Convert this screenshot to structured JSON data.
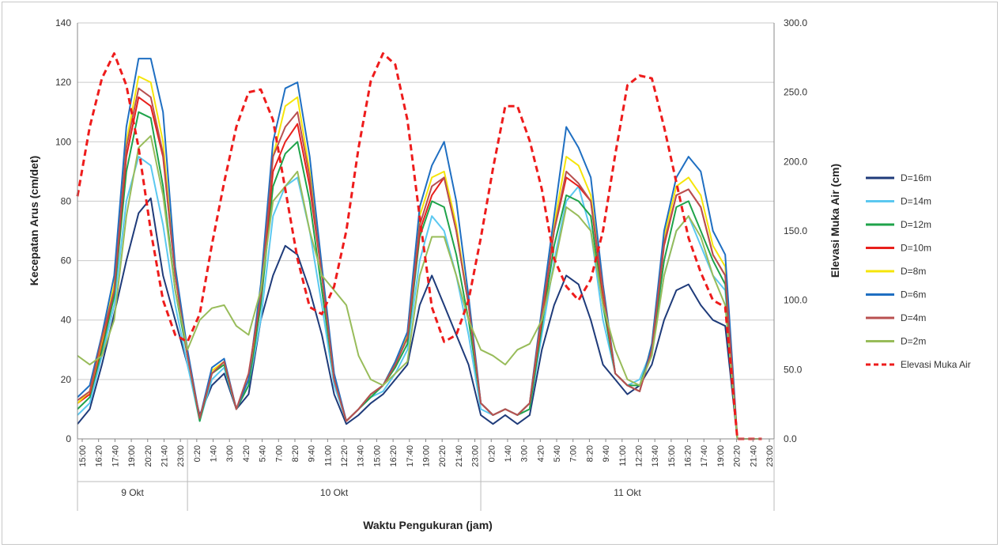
{
  "chart_data": {
    "type": "line",
    "xlabel": "Waktu Pengukuran (jam)",
    "ylabel_left": "Kecepatan Arus (cm/det)",
    "ylabel_right": "Elevasi Muka Air (cm)",
    "ylim_left": [
      0,
      140
    ],
    "ylim_right": [
      0,
      300
    ],
    "yticks_left": [
      "0",
      "20",
      "40",
      "60",
      "80",
      "100",
      "120",
      "140"
    ],
    "yticks_right": [
      "0.0",
      "50.0",
      "100.0",
      "150.0",
      "200.0",
      "250.0",
      "300.0"
    ],
    "grid": true,
    "legend_position": "right",
    "x_tick_labels": [
      "15:00",
      "16:20",
      "17:40",
      "19:00",
      "20:20",
      "21:40",
      "23:00",
      "0:20",
      "1:40",
      "3:00",
      "4:20",
      "5:40",
      "7:00",
      "8:20",
      "9:40",
      "11:00",
      "12:20",
      "13:40",
      "15:00",
      "16:20",
      "17:40",
      "19:00",
      "20:20",
      "21:40",
      "23:00",
      "0:20",
      "1:40",
      "3:00",
      "4:20",
      "5:40",
      "7:00",
      "8:20",
      "9:40",
      "11:00",
      "12:20",
      "13:40",
      "15:00",
      "16:20",
      "17:40",
      "19:00",
      "20:20",
      "21:40",
      "23:00"
    ],
    "day_groups": [
      {
        "label": "9 Okt",
        "start_hour": 15,
        "end_hour": 24
      },
      {
        "label": "10 Okt",
        "start_hour": 24,
        "end_hour": 48
      },
      {
        "label": "11 Okt",
        "start_hour": 48,
        "end_hour": 72
      }
    ],
    "series_hours": [
      15,
      16,
      17,
      18,
      19,
      20,
      21,
      22,
      23,
      24,
      25,
      26,
      27,
      28,
      29,
      30,
      31,
      32,
      33,
      34,
      35,
      36,
      37,
      38,
      39,
      40,
      41,
      42,
      43,
      44,
      45,
      46,
      47,
      48,
      49,
      50,
      51,
      52,
      53,
      54,
      55,
      56,
      57,
      58,
      59,
      60,
      61,
      62,
      63,
      64,
      65,
      66,
      67,
      68,
      69,
      70,
      71,
      72
    ],
    "series": [
      {
        "name": "D=16m",
        "color": "#1f3b7a",
        "dash": "solid",
        "axis": "left",
        "values": [
          5,
          10,
          25,
          42,
          60,
          76,
          81,
          55,
          40,
          25,
          8,
          18,
          22,
          10,
          15,
          40,
          55,
          65,
          62,
          50,
          35,
          15,
          5,
          8,
          12,
          15,
          20,
          25,
          45,
          55,
          45,
          35,
          25,
          8,
          5,
          8,
          5,
          8,
          30,
          45,
          55,
          52,
          40,
          25,
          20,
          15,
          18,
          25,
          40,
          50,
          52,
          45,
          40,
          38,
          0,
          0,
          0,
          0
        ]
      },
      {
        "name": "D=14m",
        "color": "#5bc8f0",
        "dash": "solid",
        "axis": "left",
        "values": [
          8,
          12,
          28,
          45,
          80,
          95,
          92,
          72,
          45,
          25,
          6,
          20,
          24,
          10,
          18,
          40,
          75,
          85,
          88,
          70,
          45,
          18,
          6,
          10,
          14,
          16,
          22,
          30,
          60,
          75,
          70,
          55,
          35,
          10,
          8,
          10,
          8,
          10,
          35,
          60,
          80,
          85,
          70,
          40,
          22,
          18,
          20,
          30,
          55,
          70,
          75,
          65,
          55,
          50,
          0,
          0,
          0,
          0
        ]
      },
      {
        "name": "D=12m",
        "color": "#1fa34a",
        "dash": "solid",
        "axis": "left",
        "values": [
          10,
          14,
          30,
          48,
          90,
          110,
          108,
          85,
          50,
          28,
          6,
          22,
          25,
          10,
          18,
          45,
          85,
          96,
          100,
          80,
          50,
          20,
          6,
          10,
          14,
          18,
          24,
          32,
          68,
          80,
          78,
          62,
          40,
          12,
          8,
          10,
          8,
          10,
          38,
          65,
          82,
          80,
          75,
          45,
          22,
          18,
          18,
          30,
          60,
          78,
          80,
          70,
          60,
          52,
          0,
          0,
          0,
          0
        ]
      },
      {
        "name": "D=10m",
        "color": "#e8201c",
        "dash": "solid",
        "axis": "left",
        "values": [
          12,
          15,
          32,
          50,
          95,
          115,
          112,
          95,
          55,
          28,
          7,
          22,
          26,
          10,
          20,
          48,
          90,
          100,
          106,
          85,
          55,
          20,
          6,
          10,
          15,
          18,
          25,
          34,
          70,
          82,
          88,
          70,
          45,
          12,
          8,
          10,
          8,
          12,
          40,
          70,
          88,
          85,
          80,
          48,
          22,
          18,
          16,
          30,
          65,
          82,
          84,
          78,
          62,
          55,
          0,
          0,
          0,
          0
        ]
      },
      {
        "name": "D=8m",
        "color": "#f5e50a",
        "dash": "solid",
        "axis": "left",
        "values": [
          12,
          16,
          33,
          52,
          100,
          122,
          120,
          100,
          55,
          28,
          7,
          23,
          26,
          10,
          20,
          50,
          95,
          112,
          115,
          90,
          55,
          20,
          6,
          10,
          15,
          18,
          26,
          35,
          75,
          88,
          90,
          72,
          45,
          12,
          8,
          10,
          8,
          12,
          42,
          72,
          95,
          92,
          82,
          50,
          22,
          18,
          16,
          32,
          68,
          85,
          88,
          82,
          65,
          58,
          0,
          0,
          0,
          0
        ]
      },
      {
        "name": "D=6m",
        "color": "#1f6fc2",
        "dash": "solid",
        "axis": "left",
        "values": [
          14,
          18,
          35,
          55,
          105,
          128,
          128,
          110,
          58,
          30,
          7,
          24,
          27,
          10,
          20,
          52,
          100,
          118,
          120,
          95,
          58,
          22,
          6,
          10,
          15,
          18,
          26,
          36,
          78,
          92,
          100,
          80,
          48,
          12,
          8,
          10,
          8,
          12,
          44,
          75,
          105,
          98,
          88,
          52,
          22,
          18,
          16,
          32,
          70,
          88,
          95,
          90,
          70,
          62,
          0,
          0,
          0,
          0
        ]
      },
      {
        "name": "D=4m",
        "color": "#b85050",
        "dash": "solid",
        "axis": "left",
        "values": [
          13,
          16,
          34,
          50,
          98,
          118,
          115,
          96,
          55,
          28,
          7,
          22,
          26,
          10,
          22,
          48,
          95,
          105,
          110,
          88,
          55,
          20,
          6,
          10,
          15,
          18,
          25,
          34,
          72,
          85,
          88,
          70,
          45,
          12,
          8,
          10,
          8,
          12,
          42,
          70,
          90,
          86,
          80,
          50,
          22,
          18,
          16,
          30,
          66,
          82,
          84,
          78,
          62,
          55,
          0,
          0,
          0,
          0
        ]
      },
      {
        "name": "D=2m",
        "color": "#98bc5a",
        "dash": "solid",
        "axis": "left",
        "values": [
          28,
          25,
          28,
          40,
          75,
          98,
          102,
          82,
          50,
          30,
          40,
          44,
          45,
          38,
          35,
          50,
          80,
          85,
          90,
          70,
          55,
          50,
          45,
          28,
          20,
          18,
          22,
          26,
          55,
          68,
          68,
          55,
          40,
          30,
          28,
          25,
          30,
          32,
          40,
          58,
          78,
          75,
          70,
          45,
          30,
          20,
          18,
          28,
          55,
          70,
          75,
          68,
          55,
          45,
          0,
          0,
          0,
          0
        ]
      },
      {
        "name": "Elevasi Muka Air",
        "color": "#ee1c1c",
        "dash": "dashed",
        "axis": "right",
        "values": [
          175,
          225,
          260,
          278,
          255,
          210,
          150,
          100,
          75,
          70,
          90,
          140,
          185,
          225,
          250,
          252,
          230,
          180,
          130,
          95,
          90,
          110,
          150,
          210,
          258,
          278,
          270,
          230,
          160,
          95,
          70,
          75,
          100,
          145,
          195,
          240,
          240,
          215,
          180,
          130,
          110,
          100,
          115,
          150,
          205,
          255,
          262,
          260,
          225,
          185,
          145,
          120,
          100,
          95,
          0,
          0,
          0,
          0
        ]
      }
    ]
  }
}
